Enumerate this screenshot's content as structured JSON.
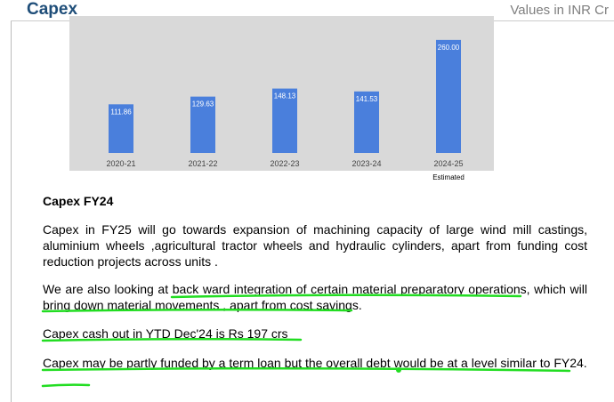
{
  "header": {
    "title": "Capex",
    "units": "Values in INR Cr"
  },
  "chart_data": {
    "type": "bar",
    "categories": [
      "2020-21",
      "2021-22",
      "2022-23",
      "2023-24",
      "2024-25"
    ],
    "values": [
      111.86,
      129.63,
      148.13,
      141.53,
      260
    ],
    "value_labels": [
      "111.86",
      "129.63",
      "148.13",
      "141.53",
      "260.00"
    ],
    "color": "#4a7fdc",
    "ylim": [
      0,
      270
    ],
    "annotation": "Estimated"
  },
  "section": {
    "heading": "Capex FY24",
    "paragraphs": [
      "Capex in FY25 will go towards expansion of machining capacity of large wind mill castings, aluminium wheels ,agricultural tractor wheels and hydraulic cylinders, apart from funding cost reduction projects across units .",
      "We are also looking at back ward integration of certain material preparatory operations, which will bring down material movements , apart from cost savings.",
      "Capex cash out in YTD Dec'24 is Rs 197 crs",
      "Capex may be partly funded by a term loan but the overall debt would be at a level similar to FY24."
    ]
  }
}
